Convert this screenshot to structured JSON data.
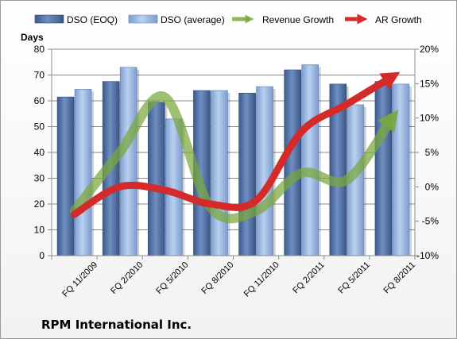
{
  "chart_data": {
    "type": "bar",
    "title": "",
    "company": "RPM International Inc.",
    "ylabel": "Days",
    "ylim": [
      0,
      80
    ],
    "yticks": [
      "0",
      "10",
      "20",
      "30",
      "40",
      "50",
      "60",
      "70",
      "80"
    ],
    "y2lim": [
      -10,
      20
    ],
    "y2ticks": [
      "-10%",
      "-5%",
      "0%",
      "5%",
      "10%",
      "15%",
      "20%"
    ],
    "grid": true,
    "legend_position": "top",
    "categories": [
      "FQ 11/2009",
      "FQ 2/2010",
      "FQ 5/2010",
      "FQ 8/2010",
      "FQ 11/2010",
      "FQ 2/2011",
      "FQ 5/2011",
      "FQ 8/2011"
    ],
    "bar_series": [
      {
        "name": "DSO (EOQ)",
        "values": [
          61.5,
          67.5,
          59.5,
          64,
          63,
          72,
          66.5,
          67.5
        ],
        "color": "#4f6fa5"
      },
      {
        "name": "DSO (average)",
        "values": [
          64.5,
          73,
          53,
          64,
          65.5,
          74,
          58.5,
          66.5
        ],
        "color": "#8fb2e0"
      }
    ],
    "line_series": [
      {
        "name": "Revenue Growth",
        "axis": "right",
        "color": "#7aa83c",
        "values": [
          -3.5,
          5,
          13,
          -3,
          -3.5,
          2,
          1,
          10
        ]
      },
      {
        "name": "AR Growth",
        "axis": "right",
        "color": "#d42a2a",
        "values": [
          -4,
          0,
          -0.5,
          -2.5,
          -2,
          8,
          12,
          16
        ]
      }
    ]
  }
}
